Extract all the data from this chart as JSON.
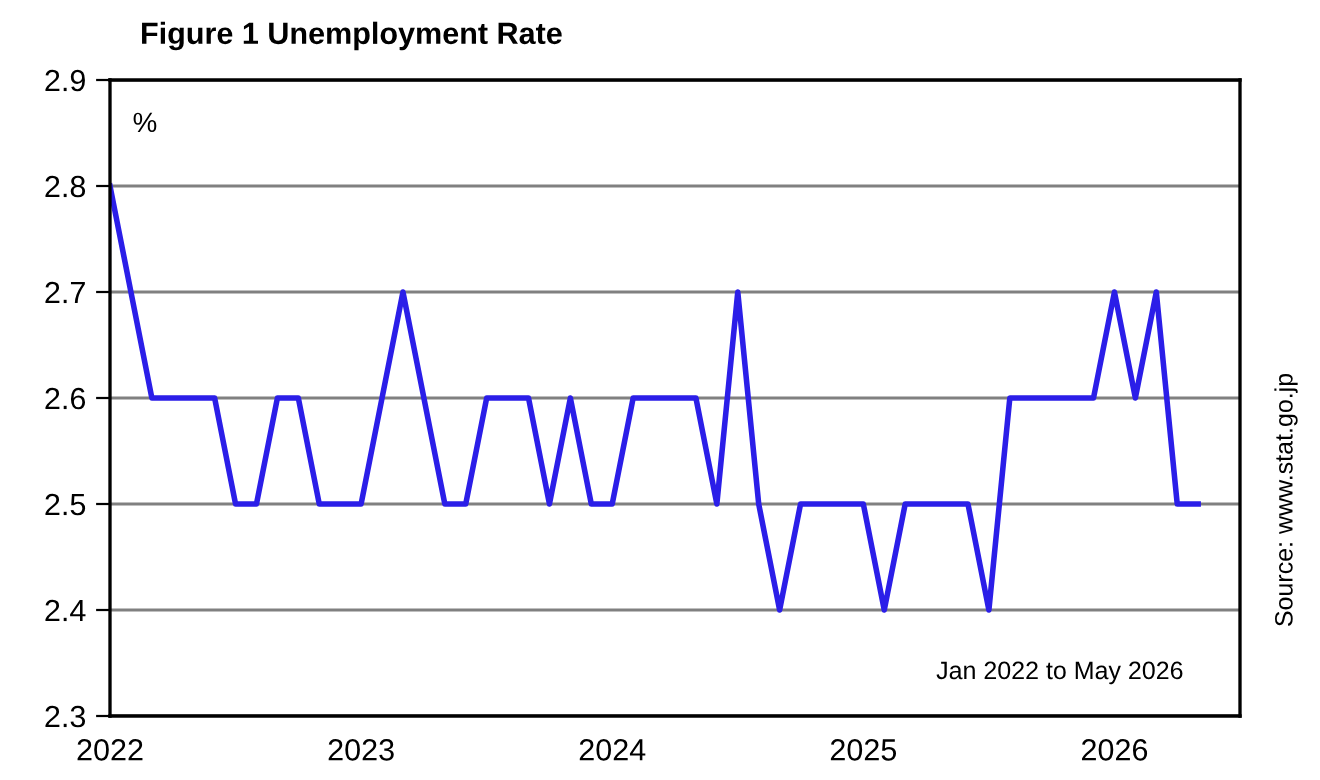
{
  "chart_data": {
    "type": "line",
    "title": "Figure 1 Unemployment Rate",
    "x": [
      "2022-01",
      "2022-02",
      "2022-03",
      "2022-04",
      "2022-05",
      "2022-06",
      "2022-07",
      "2022-08",
      "2022-09",
      "2022-10",
      "2022-11",
      "2022-12",
      "2023-01",
      "2023-02",
      "2023-03",
      "2023-04",
      "2023-05",
      "2023-06",
      "2023-07",
      "2023-08",
      "2023-09",
      "2023-10",
      "2023-11",
      "2023-12",
      "2024-01",
      "2024-02",
      "2024-03",
      "2024-04",
      "2024-05",
      "2024-06",
      "2024-07",
      "2024-08",
      "2024-09",
      "2024-10",
      "2024-11",
      "2024-12",
      "2025-01",
      "2025-02",
      "2025-03",
      "2025-04",
      "2025-05",
      "2025-06",
      "2025-07",
      "2025-08",
      "2025-09",
      "2025-10",
      "2025-11",
      "2025-12",
      "2026-01",
      "2026-02",
      "2026-03",
      "2026-04",
      "2026-05"
    ],
    "series": [
      {
        "color": "#2b1ee8",
        "values": [
          2.8,
          2.7,
          2.6,
          2.6,
          2.6,
          2.6,
          2.5,
          2.5,
          2.6,
          2.6,
          2.5,
          2.5,
          2.5,
          2.6,
          2.7,
          2.6,
          2.5,
          2.5,
          2.6,
          2.6,
          2.6,
          2.5,
          2.6,
          2.5,
          2.5,
          2.6,
          2.6,
          2.6,
          2.6,
          2.5,
          2.7,
          2.5,
          2.4,
          2.5,
          2.5,
          2.5,
          2.5,
          2.4,
          2.5,
          2.5,
          2.5,
          2.5,
          2.4,
          2.6,
          2.6,
          2.6,
          2.6,
          2.6,
          2.7,
          2.6,
          2.7,
          2.5,
          2.5
        ]
      }
    ],
    "xlim": [
      "2022-01",
      "2026-07"
    ],
    "xticks": [
      {
        "value": "2022-01",
        "label": "2022"
      },
      {
        "value": "2023-01",
        "label": "2023"
      },
      {
        "value": "2024-01",
        "label": "2024"
      },
      {
        "value": "2025-01",
        "label": "2025"
      },
      {
        "value": "2026-01",
        "label": "2026"
      }
    ],
    "ylim": [
      2.3,
      2.9
    ],
    "yticks": [
      {
        "value": 2.3,
        "label": "2.3"
      },
      {
        "value": 2.4,
        "label": "2.4"
      },
      {
        "value": 2.5,
        "label": "2.5"
      },
      {
        "value": 2.6,
        "label": "2.6"
      },
      {
        "value": 2.7,
        "label": "2.7"
      },
      {
        "value": 2.8,
        "label": "2.8"
      },
      {
        "value": 2.9,
        "label": "2.9"
      }
    ],
    "grid": "y",
    "marker": "none",
    "line_style": "solid",
    "annotations": [
      "%",
      "Jan 2022 to May 2026",
      "Source: www.stat.go.jp"
    ]
  }
}
